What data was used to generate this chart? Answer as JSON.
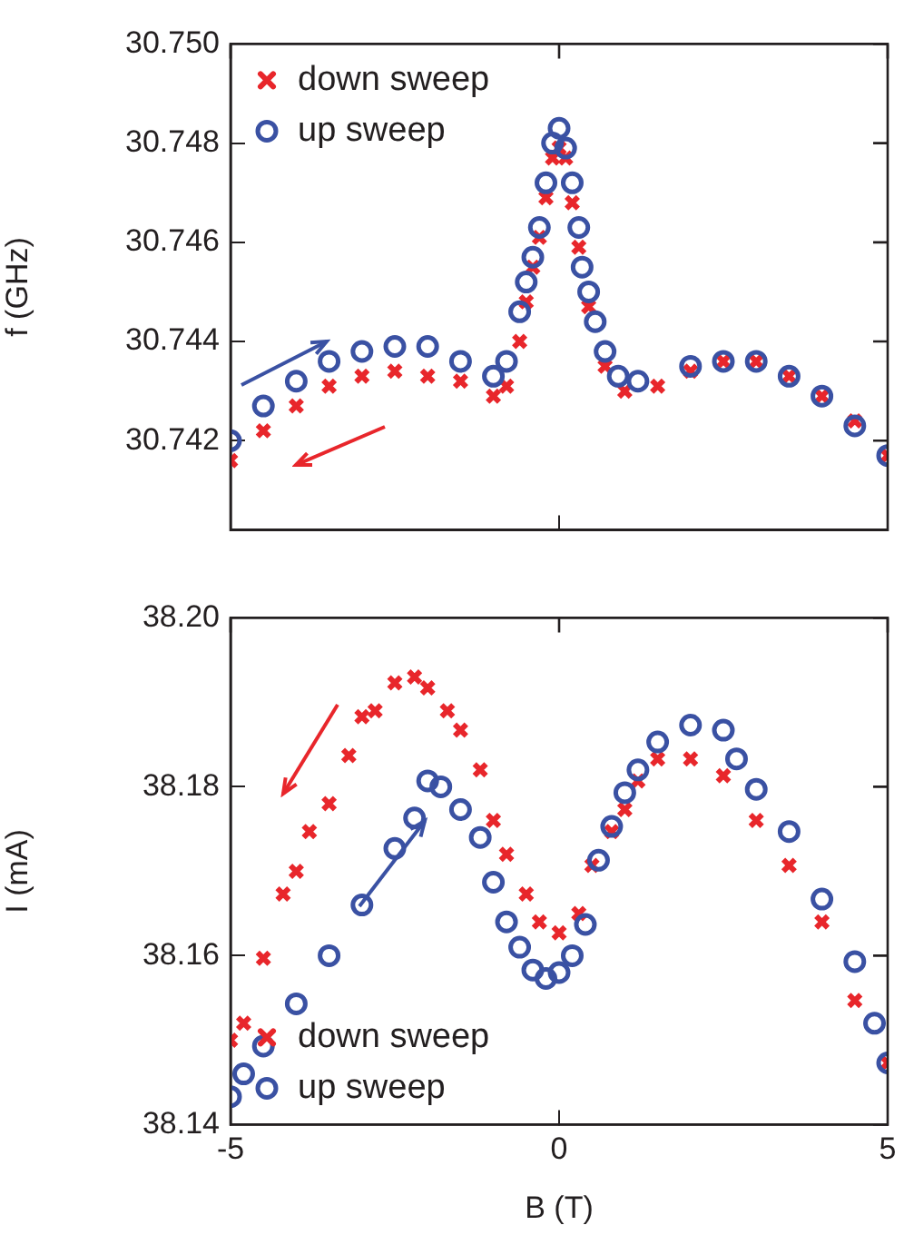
{
  "chart_data": [
    {
      "type": "scatter",
      "ylabel": "f (GHz)",
      "xlim": [
        -5,
        5
      ],
      "xticks": [
        -5,
        0,
        5
      ],
      "ylim": [
        30.7402,
        30.75
      ],
      "yticks": [
        30.742,
        30.744,
        30.746,
        30.748,
        {
          "value": 30.75,
          "label": "30.750"
        }
      ],
      "tick_labels": "y",
      "grid": false,
      "legend": "top left",
      "series": [
        {
          "name": "down sweep",
          "color": "#e8262b",
          "marker": "cross",
          "x": [
            -5,
            -4.5,
            -4,
            -3.5,
            -3,
            -2.5,
            -2,
            -1.5,
            -1,
            -0.8,
            -0.6,
            -0.5,
            -0.4,
            -0.3,
            -0.2,
            -0.1,
            0,
            0.1,
            0.2,
            0.3,
            0.45,
            0.7,
            1,
            1.5,
            2,
            2.5,
            3,
            3.5,
            4,
            4.5,
            5
          ],
          "values": [
            30.7416,
            30.7422,
            30.7427,
            30.7431,
            30.7433,
            30.7434,
            30.7433,
            30.7432,
            30.7429,
            30.7431,
            30.744,
            30.7448,
            30.7455,
            30.7461,
            30.7469,
            30.7477,
            30.7479,
            30.7477,
            30.7468,
            30.7459,
            30.7447,
            30.7435,
            30.743,
            30.7431,
            30.7434,
            30.7436,
            30.7436,
            30.7433,
            30.7429,
            30.7424,
            30.7417
          ]
        },
        {
          "name": "up sweep",
          "color": "#3a51a3",
          "marker": "circle",
          "x": [
            -5,
            -4.5,
            -4,
            -3.5,
            -3,
            -2.5,
            -2,
            -1.5,
            -1,
            -0.8,
            -0.6,
            -0.5,
            -0.4,
            -0.3,
            -0.2,
            -0.1,
            0,
            0.1,
            0.2,
            0.3,
            0.35,
            0.45,
            0.55,
            0.7,
            0.9,
            1.2,
            2,
            2.5,
            3,
            3.5,
            4,
            4.5,
            5
          ],
          "values": [
            30.742,
            30.7427,
            30.7432,
            30.7436,
            30.7438,
            30.7439,
            30.7439,
            30.7436,
            30.7433,
            30.7436,
            30.7446,
            30.7452,
            30.7457,
            30.7463,
            30.7472,
            30.748,
            30.7483,
            30.7479,
            30.7472,
            30.7463,
            30.7455,
            30.745,
            30.7444,
            30.7438,
            30.7433,
            30.7432,
            30.7435,
            30.7436,
            30.7436,
            30.7433,
            30.7429,
            30.7423,
            30.7417
          ]
        }
      ]
    },
    {
      "type": "scatter",
      "xlabel": "B (T)",
      "ylabel": "I (mA)",
      "xlim": [
        -5,
        5
      ],
      "xticks": [
        -5,
        0,
        5
      ],
      "ylim": [
        38.14,
        38.2
      ],
      "yticks": [
        38.14,
        38.16,
        38.18,
        {
          "value": 38.2,
          "label": "38.20"
        }
      ],
      "grid": false,
      "legend": "bottom left",
      "series": [
        {
          "name": "down sweep",
          "color": "#e8262b",
          "marker": "cross",
          "x": [
            -5,
            -4.8,
            -4.5,
            -4.2,
            -4,
            -3.8,
            -3.5,
            -3.2,
            -3,
            -2.8,
            -2.5,
            -2.2,
            -2,
            -1.7,
            -1.5,
            -1.2,
            -1,
            -0.8,
            -0.5,
            -0.3,
            0,
            0.3,
            0.5,
            0.8,
            1,
            1.2,
            1.5,
            2,
            2.5,
            3,
            3.5,
            4,
            4.5,
            5
          ],
          "values": [
            38.15,
            38.152,
            38.1597,
            38.1673,
            38.17,
            38.1747,
            38.178,
            38.1837,
            38.1883,
            38.189,
            38.1923,
            38.193,
            38.1917,
            38.189,
            38.1867,
            38.182,
            38.176,
            38.172,
            38.1673,
            38.164,
            38.1627,
            38.165,
            38.1707,
            38.1747,
            38.1773,
            38.1807,
            38.1833,
            38.1833,
            38.1813,
            38.176,
            38.1707,
            38.164,
            38.1547,
            38.1473
          ]
        },
        {
          "name": "up sweep",
          "color": "#3a51a3",
          "marker": "circle",
          "x": [
            -5,
            -4.8,
            -4.5,
            -4,
            -3.5,
            -3,
            -2.5,
            -2.2,
            -2,
            -1.8,
            -1.5,
            -1.2,
            -1,
            -0.8,
            -0.6,
            -0.4,
            -0.2,
            0,
            0.2,
            0.4,
            0.6,
            0.8,
            1,
            1.2,
            1.5,
            2,
            2.5,
            2.7,
            3,
            3.5,
            4,
            4.5,
            4.8,
            5
          ],
          "values": [
            38.1433,
            38.146,
            38.1493,
            38.1543,
            38.16,
            38.166,
            38.1727,
            38.1763,
            38.1807,
            38.18,
            38.1773,
            38.174,
            38.1687,
            38.164,
            38.161,
            38.1583,
            38.1573,
            38.158,
            38.16,
            38.1637,
            38.1713,
            38.1753,
            38.1793,
            38.182,
            38.1853,
            38.1873,
            38.1867,
            38.1833,
            38.1797,
            38.1747,
            38.1667,
            38.1593,
            38.152,
            38.1473
          ]
        }
      ]
    }
  ]
}
